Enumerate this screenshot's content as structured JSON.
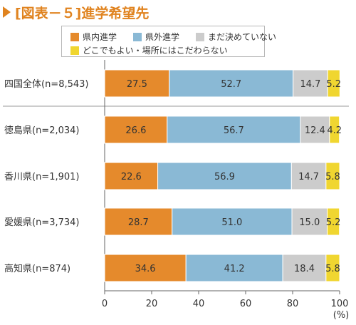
{
  "title": "[図表－５]進学希望先",
  "legend": [
    {
      "name": "県内進学",
      "color": "#e58a2c"
    },
    {
      "name": "県外進学",
      "color": "#8ab9d5"
    },
    {
      "name": "まだ決めていない",
      "color": "#cccccc"
    },
    {
      "name": "どこでもよい・場所にはこだわらない",
      "color": "#f0d630"
    }
  ],
  "chart_data": {
    "type": "bar",
    "orientation": "horizontal",
    "stacked": true,
    "categories": [
      "四国全体(n=8,543)",
      "徳島県(n=2,034)",
      "香川県(n=1,901)",
      "愛媛県(n=3,734)",
      "高知県(n=874)"
    ],
    "series": [
      {
        "name": "県内進学",
        "values": [
          27.5,
          26.6,
          22.6,
          28.7,
          34.6
        ]
      },
      {
        "name": "県外進学",
        "values": [
          52.7,
          56.7,
          56.9,
          51.0,
          41.2
        ]
      },
      {
        "name": "まだ決めていない",
        "values": [
          14.7,
          12.4,
          14.7,
          15.0,
          18.4
        ]
      },
      {
        "name": "どこでもよい・場所にはこだわらない",
        "values": [
          5.2,
          4.2,
          5.8,
          5.2,
          5.8
        ]
      }
    ],
    "data_labels": [
      [
        "27.5",
        "52.7",
        "14.7",
        "5.2"
      ],
      [
        "26.6",
        "56.7",
        "12.4",
        "4.2"
      ],
      [
        "22.6",
        "56.9",
        "14.7",
        "5.8"
      ],
      [
        "28.7",
        "51.0",
        "15.0",
        "5.2"
      ],
      [
        "34.6",
        "41.2",
        "18.4",
        "5.8"
      ]
    ],
    "xlim": [
      0,
      100
    ],
    "xticks": [
      "0",
      "20",
      "40",
      "60",
      "80",
      "100"
    ],
    "xunit": "(%)",
    "grid": false,
    "legend_position": "top"
  }
}
